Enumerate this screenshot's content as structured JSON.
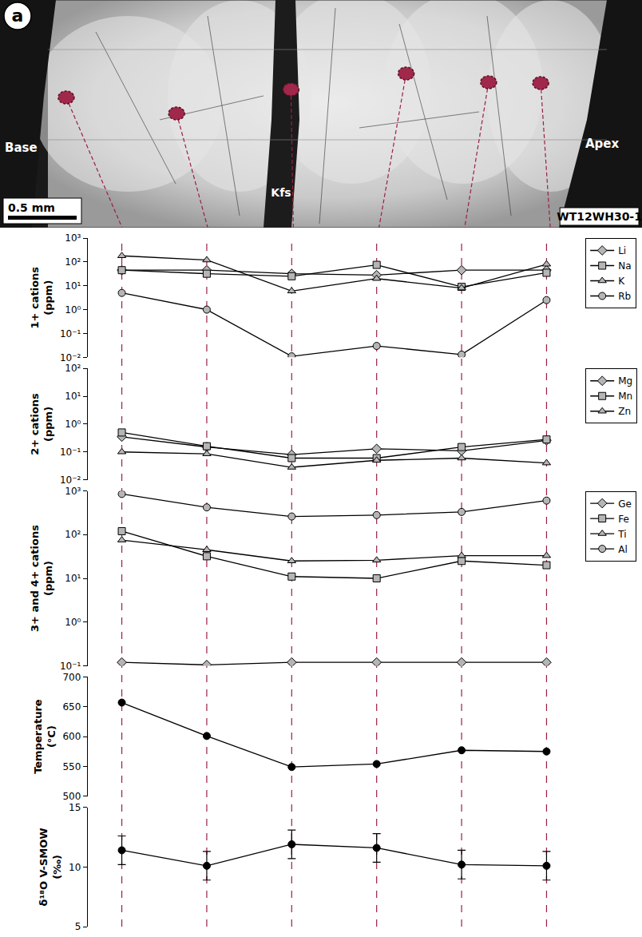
{
  "image": {
    "panel_letter": "a",
    "base": "Base",
    "apex": "Apex",
    "mineral": "Kfs",
    "scale_bar": "0.5 mm",
    "sample": "WT12WH30-1"
  },
  "chart_data": [
    {
      "type": "line",
      "ylabel": "1+ cations (ppm)",
      "categories": [
        null,
        null,
        null,
        null,
        null,
        null
      ],
      "log": "y",
      "grid": false,
      "legend": "right",
      "tick_labels": "y",
      "ylim": [
        0.01,
        1000
      ],
      "yticks": [
        {
          "value": 0.01,
          "label": "10⁻²"
        },
        {
          "value": 0.1,
          "label": "10⁻¹"
        },
        {
          "value": 1,
          "label": "10⁰"
        },
        {
          "value": 10,
          "label": "10¹"
        },
        {
          "value": 100,
          "label": "10²"
        },
        {
          "value": 1000,
          "label": "10³"
        }
      ],
      "series": [
        {
          "name": "Li",
          "color": "#b5b5b5",
          "marker": "diamond",
          "values": [
            45,
            45,
            32,
            28,
            45,
            45
          ]
        },
        {
          "name": "Na",
          "color": "#b5b5b5",
          "marker": "square",
          "values": [
            45,
            32,
            25,
            75,
            9,
            35
          ]
        },
        {
          "name": "K",
          "color": "#b5b5b5",
          "marker": "triangle",
          "values": [
            180,
            120,
            6,
            20,
            8,
            80
          ]
        },
        {
          "name": "Rb",
          "color": "#b5b5b5",
          "marker": "circle",
          "values": [
            5,
            1,
            0.011,
            0.03,
            0.013,
            2.5
          ]
        }
      ]
    },
    {
      "type": "line",
      "ylabel": "2+ cations (ppm)",
      "categories": [
        null,
        null,
        null,
        null,
        null,
        null
      ],
      "log": "y",
      "grid": false,
      "legend": "right",
      "tick_labels": "y",
      "ylim": [
        0.01,
        100
      ],
      "yticks": [
        {
          "value": 0.01,
          "label": "10⁻²"
        },
        {
          "value": 0.1,
          "label": "10⁻¹"
        },
        {
          "value": 1,
          "label": "10⁰"
        },
        {
          "value": 10,
          "label": "10¹"
        },
        {
          "value": 100,
          "label": "10²"
        }
      ],
      "series": [
        {
          "name": "Mg",
          "color": "#b5b5b5",
          "marker": "diamond",
          "values": [
            0.35,
            0.15,
            0.08,
            0.13,
            0.11,
            0.26
          ]
        },
        {
          "name": "Mn",
          "color": "#b5b5b5",
          "marker": "square",
          "values": [
            0.5,
            0.16,
            0.06,
            0.06,
            0.15,
            0.28
          ]
        },
        {
          "name": "Zn",
          "color": "#b5b5b5",
          "marker": "triangle",
          "values": [
            0.1,
            0.085,
            0.028,
            0.05,
            0.06,
            0.04
          ]
        }
      ]
    },
    {
      "type": "line",
      "ylabel": "3+ and 4+ cations (ppm)",
      "categories": [
        null,
        null,
        null,
        null,
        null,
        null
      ],
      "log": "y",
      "grid": false,
      "legend": "right",
      "tick_labels": "y",
      "ylim": [
        0.1,
        1000
      ],
      "yticks": [
        {
          "value": 0.1,
          "label": "10⁻¹"
        },
        {
          "value": 1,
          "label": "10⁰"
        },
        {
          "value": 10,
          "label": "10¹"
        },
        {
          "value": 100,
          "label": "10²"
        },
        {
          "value": 1000,
          "label": "10³"
        }
      ],
      "series": [
        {
          "name": "Ge",
          "color": "#b5b5b5",
          "marker": "diamond",
          "values": [
            0.12,
            0.105,
            0.12,
            0.12,
            0.12,
            0.12
          ]
        },
        {
          "name": "Fe",
          "color": "#b5b5b5",
          "marker": "square",
          "values": [
            120,
            32,
            11,
            10,
            25,
            20
          ]
        },
        {
          "name": "Ti",
          "color": "#b5b5b5",
          "marker": "triangle",
          "values": [
            75,
            45,
            25,
            26,
            33,
            33
          ]
        },
        {
          "name": "Al",
          "color": "#b5b5b5",
          "marker": "circle",
          "values": [
            850,
            420,
            260,
            280,
            330,
            600
          ]
        }
      ]
    },
    {
      "type": "line",
      "ylabel": "Temperature (°C)",
      "categories": [
        null,
        null,
        null,
        null,
        null,
        null
      ],
      "grid": false,
      "tick_labels": "y",
      "color": "#000000",
      "marker": "circle",
      "ylim": [
        500,
        700
      ],
      "yticks": [
        500,
        550,
        600,
        650,
        700
      ],
      "values": [
        657,
        601,
        549,
        554,
        577,
        575
      ]
    },
    {
      "type": "line",
      "ylabel": "δ¹⁸O V-SMOW (‰)",
      "categories": [
        null,
        null,
        null,
        null,
        null,
        null
      ],
      "grid": false,
      "tick_labels": "y",
      "color": "#000000",
      "marker": "circle",
      "ylim": [
        5,
        15
      ],
      "yticks": [
        5,
        10,
        15
      ],
      "values": [
        11.4,
        10.1,
        11.9,
        11.6,
        10.2,
        10.1
      ],
      "errors": [
        1.2,
        1.2,
        1.2,
        1.2,
        1.2,
        1.2
      ]
    }
  ]
}
